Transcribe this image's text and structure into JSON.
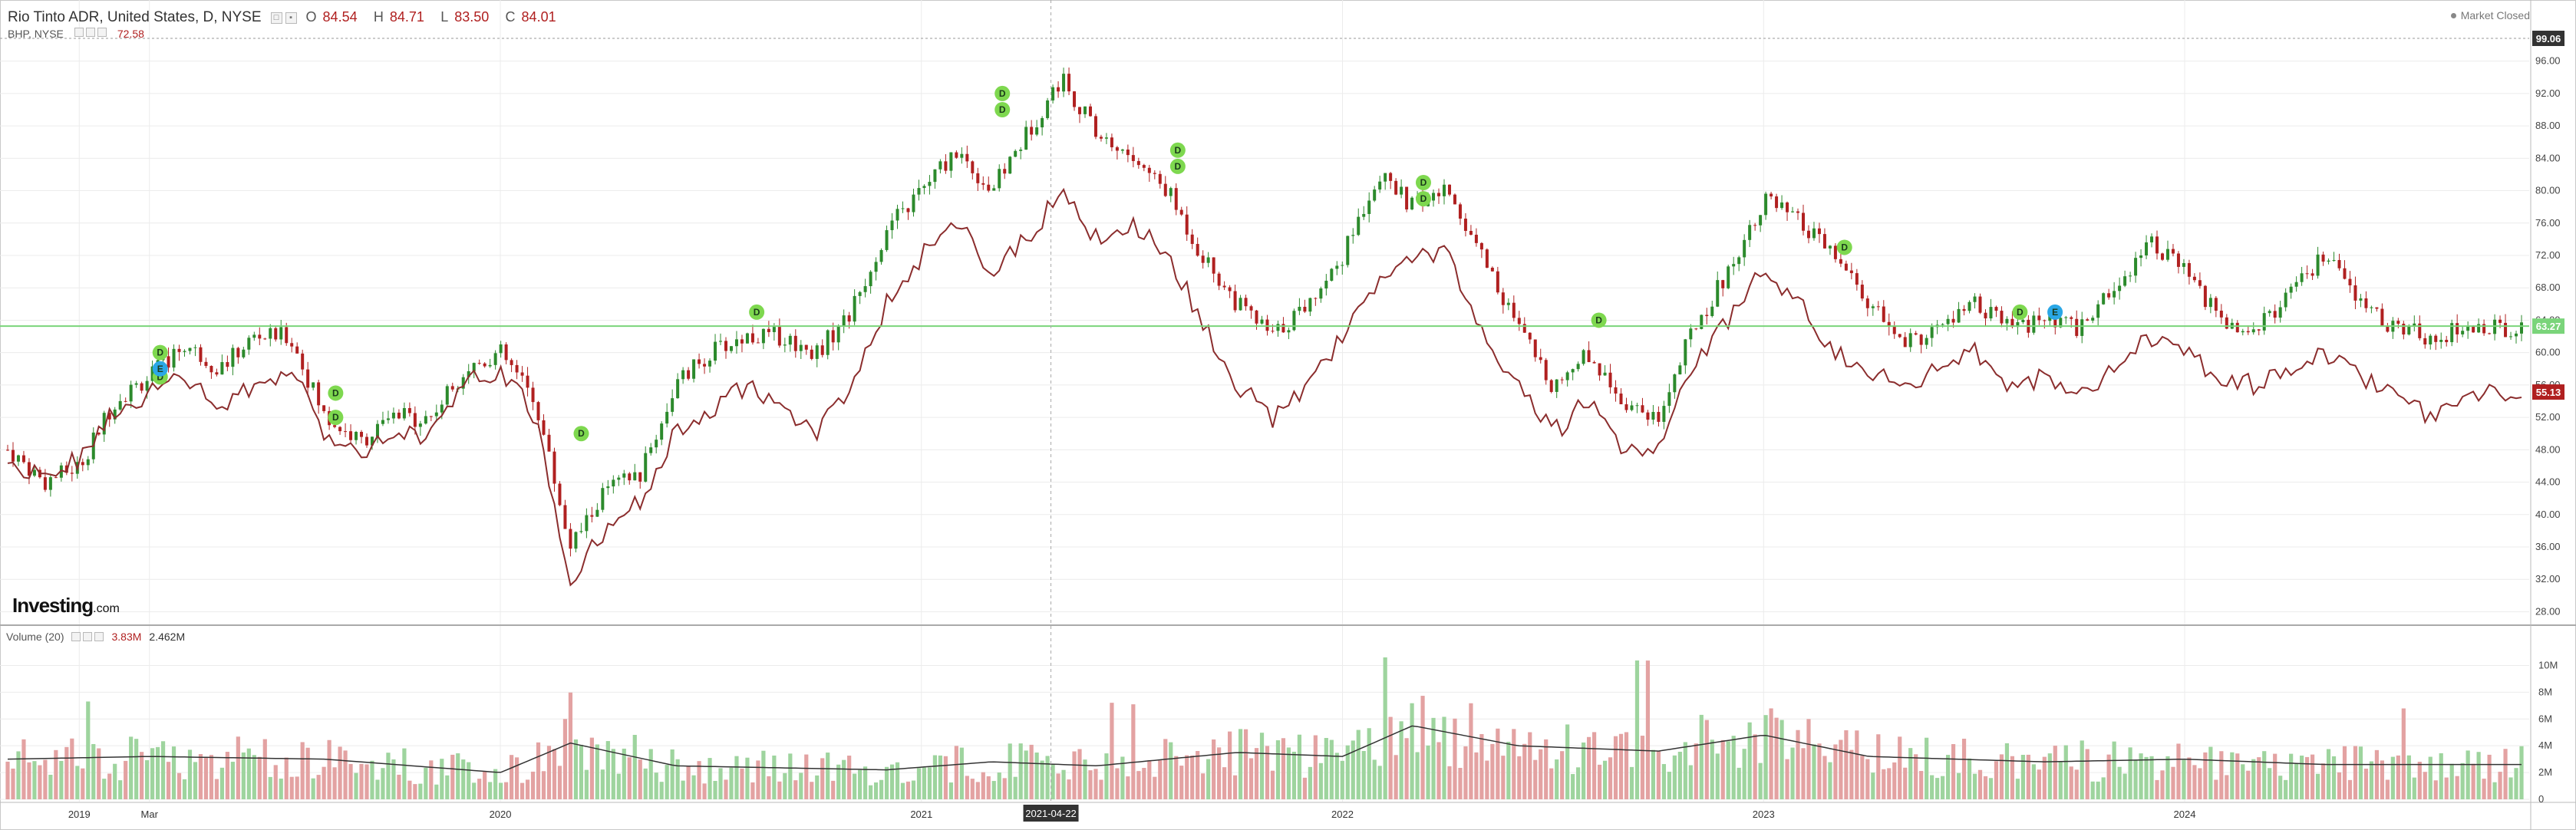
{
  "header": {
    "title": "Rio Tinto ADR, United States, D, NYSE",
    "open_label": "O",
    "open": "84.54",
    "high_label": "H",
    "high": "84.71",
    "low_label": "L",
    "low": "83.50",
    "close_label": "C",
    "close": "84.01",
    "market_status": "Market Closed"
  },
  "compare": {
    "symbol": "BHP, NYSE",
    "value": "72.58"
  },
  "watermark": {
    "brand": "Investing",
    "suffix": ".com"
  },
  "volume_legend": {
    "label": "Volume (20)",
    "value": "3.83M",
    "ma_value": "2.462M"
  },
  "markers": {
    "dividend_label": "D",
    "earnings_label": "E"
  },
  "colors": {
    "up": "#2c8a2c",
    "down": "#b02020",
    "compare_line": "#8b2d2d",
    "hline": "#7ad47a",
    "vol_up": "#9ed49e",
    "vol_down": "#e3a2a2",
    "dividend_marker": "#7ed84f",
    "earnings_marker": "#2aa7e6"
  },
  "chart_data": [
    {
      "type": "candlestick",
      "name": "Rio Tinto ADR",
      "y_axis_ticks": [
        "96.00",
        "92.00",
        "88.00",
        "84.00",
        "80.00",
        "76.00",
        "72.00",
        "68.00",
        "64.00",
        "60.00",
        "56.00",
        "52.00",
        "48.00",
        "44.00",
        "40.00",
        "36.00",
        "32.00",
        "28.00"
      ],
      "ylim": [
        27,
        99
      ],
      "x_axis_labels": [
        "2019",
        "Mar",
        "2020",
        "2021",
        "2021-04-22",
        "2022",
        "2023",
        "2024"
      ],
      "crosshair_date": "2021-04-22",
      "last_price_label": "99.06",
      "horizontal_line_label": "63.27",
      "horizontal_line_value": 63.27,
      "compare_last_label": "55.13",
      "price_path": [
        {
          "x": "2018-11",
          "y": 48
        },
        {
          "x": "2018-12",
          "y": 44
        },
        {
          "x": "2019-01",
          "y": 46
        },
        {
          "x": "2019-02",
          "y": 54
        },
        {
          "x": "2019-03",
          "y": 57
        },
        {
          "x": "2019-04",
          "y": 61
        },
        {
          "x": "2019-05",
          "y": 58
        },
        {
          "x": "2019-06",
          "y": 62
        },
        {
          "x": "2019-07",
          "y": 62
        },
        {
          "x": "2019-08",
          "y": 52
        },
        {
          "x": "2019-09",
          "y": 49
        },
        {
          "x": "2019-10",
          "y": 52
        },
        {
          "x": "2019-11",
          "y": 52
        },
        {
          "x": "2019-12",
          "y": 58
        },
        {
          "x": "2020-01",
          "y": 60
        },
        {
          "x": "2020-02",
          "y": 54
        },
        {
          "x": "2020-03",
          "y": 36
        },
        {
          "x": "2020-04",
          "y": 43
        },
        {
          "x": "2020-05",
          "y": 45
        },
        {
          "x": "2020-06",
          "y": 56
        },
        {
          "x": "2020-07",
          "y": 60
        },
        {
          "x": "2020-08",
          "y": 62
        },
        {
          "x": "2020-09",
          "y": 62
        },
        {
          "x": "2020-10",
          "y": 60
        },
        {
          "x": "2020-11",
          "y": 65
        },
        {
          "x": "2020-12",
          "y": 75
        },
        {
          "x": "2021-01",
          "y": 80
        },
        {
          "x": "2021-02",
          "y": 85
        },
        {
          "x": "2021-03",
          "y": 80
        },
        {
          "x": "2021-04",
          "y": 87
        },
        {
          "x": "2021-05",
          "y": 94
        },
        {
          "x": "2021-06",
          "y": 87
        },
        {
          "x": "2021-07",
          "y": 84
        },
        {
          "x": "2021-08",
          "y": 80
        },
        {
          "x": "2021-09",
          "y": 72
        },
        {
          "x": "2021-10",
          "y": 66
        },
        {
          "x": "2021-11",
          "y": 62
        },
        {
          "x": "2021-12",
          "y": 66
        },
        {
          "x": "2022-01",
          "y": 72
        },
        {
          "x": "2022-02",
          "y": 82
        },
        {
          "x": "2022-03",
          "y": 78
        },
        {
          "x": "2022-04",
          "y": 80
        },
        {
          "x": "2022-05",
          "y": 72
        },
        {
          "x": "2022-06",
          "y": 63
        },
        {
          "x": "2022-07",
          "y": 56
        },
        {
          "x": "2022-08",
          "y": 60
        },
        {
          "x": "2022-09",
          "y": 54
        },
        {
          "x": "2022-10",
          "y": 52
        },
        {
          "x": "2022-11",
          "y": 63
        },
        {
          "x": "2022-12",
          "y": 70
        },
        {
          "x": "2023-01",
          "y": 79
        },
        {
          "x": "2023-02",
          "y": 76
        },
        {
          "x": "2023-03",
          "y": 72
        },
        {
          "x": "2023-04",
          "y": 66
        },
        {
          "x": "2023-05",
          "y": 61
        },
        {
          "x": "2023-06",
          "y": 63
        },
        {
          "x": "2023-07",
          "y": 66
        },
        {
          "x": "2023-08",
          "y": 63
        },
        {
          "x": "2023-09",
          "y": 64
        },
        {
          "x": "2023-10",
          "y": 63
        },
        {
          "x": "2023-11",
          "y": 68
        },
        {
          "x": "2023-12",
          "y": 74
        },
        {
          "x": "2024-01",
          "y": 70
        },
        {
          "x": "2024-02",
          "y": 64
        },
        {
          "x": "2024-03",
          "y": 63
        },
        {
          "x": "2024-04",
          "y": 67
        },
        {
          "x": "2024-05",
          "y": 72
        },
        {
          "x": "2024-06",
          "y": 66
        },
        {
          "x": "2024-07",
          "y": 63
        },
        {
          "x": "2024-08",
          "y": 62
        },
        {
          "x": "2024-09",
          "y": 63
        }
      ],
      "compare_path": [
        {
          "x": "2018-11",
          "y": 47
        },
        {
          "x": "2018-12",
          "y": 44
        },
        {
          "x": "2019-01",
          "y": 47
        },
        {
          "x": "2019-02",
          "y": 53
        },
        {
          "x": "2019-03",
          "y": 55
        },
        {
          "x": "2019-04",
          "y": 57
        },
        {
          "x": "2019-05",
          "y": 53
        },
        {
          "x": "2019-06",
          "y": 56
        },
        {
          "x": "2019-07",
          "y": 58
        },
        {
          "x": "2019-08",
          "y": 50
        },
        {
          "x": "2019-09",
          "y": 48
        },
        {
          "x": "2019-10",
          "y": 50
        },
        {
          "x": "2019-11",
          "y": 50
        },
        {
          "x": "2019-12",
          "y": 56
        },
        {
          "x": "2020-01",
          "y": 58
        },
        {
          "x": "2020-02",
          "y": 52
        },
        {
          "x": "2020-03",
          "y": 32
        },
        {
          "x": "2020-04",
          "y": 38
        },
        {
          "x": "2020-05",
          "y": 42
        },
        {
          "x": "2020-06",
          "y": 50
        },
        {
          "x": "2020-07",
          "y": 53
        },
        {
          "x": "2020-08",
          "y": 56
        },
        {
          "x": "2020-09",
          "y": 53
        },
        {
          "x": "2020-10",
          "y": 50
        },
        {
          "x": "2020-11",
          "y": 56
        },
        {
          "x": "2020-12",
          "y": 66
        },
        {
          "x": "2021-01",
          "y": 72
        },
        {
          "x": "2021-02",
          "y": 76
        },
        {
          "x": "2021-03",
          "y": 70
        },
        {
          "x": "2021-04",
          "y": 74
        },
        {
          "x": "2021-05",
          "y": 80
        },
        {
          "x": "2021-06",
          "y": 74
        },
        {
          "x": "2021-07",
          "y": 76
        },
        {
          "x": "2021-08",
          "y": 72
        },
        {
          "x": "2021-09",
          "y": 64
        },
        {
          "x": "2021-10",
          "y": 56
        },
        {
          "x": "2021-11",
          "y": 52
        },
        {
          "x": "2021-12",
          "y": 56
        },
        {
          "x": "2022-01",
          "y": 62
        },
        {
          "x": "2022-02",
          "y": 68
        },
        {
          "x": "2022-03",
          "y": 72
        },
        {
          "x": "2022-04",
          "y": 72
        },
        {
          "x": "2022-05",
          "y": 62
        },
        {
          "x": "2022-06",
          "y": 56
        },
        {
          "x": "2022-07",
          "y": 50
        },
        {
          "x": "2022-08",
          "y": 54
        },
        {
          "x": "2022-09",
          "y": 48
        },
        {
          "x": "2022-10",
          "y": 48
        },
        {
          "x": "2022-11",
          "y": 58
        },
        {
          "x": "2022-12",
          "y": 64
        },
        {
          "x": "2023-01",
          "y": 70
        },
        {
          "x": "2023-02",
          "y": 66
        },
        {
          "x": "2023-03",
          "y": 60
        },
        {
          "x": "2023-04",
          "y": 58
        },
        {
          "x": "2023-05",
          "y": 55
        },
        {
          "x": "2023-06",
          "y": 58
        },
        {
          "x": "2023-07",
          "y": 60
        },
        {
          "x": "2023-08",
          "y": 56
        },
        {
          "x": "2023-09",
          "y": 57
        },
        {
          "x": "2023-10",
          "y": 55
        },
        {
          "x": "2023-11",
          "y": 58
        },
        {
          "x": "2023-12",
          "y": 62
        },
        {
          "x": "2024-01",
          "y": 60
        },
        {
          "x": "2024-02",
          "y": 57
        },
        {
          "x": "2024-03",
          "y": 56
        },
        {
          "x": "2024-04",
          "y": 58
        },
        {
          "x": "2024-05",
          "y": 60
        },
        {
          "x": "2024-06",
          "y": 57
        },
        {
          "x": "2024-07",
          "y": 55
        },
        {
          "x": "2024-08",
          "y": 52
        },
        {
          "x": "2024-09",
          "y": 55
        }
      ],
      "dividend_markers": [
        {
          "x": "2019-03",
          "y": 60
        },
        {
          "x": "2019-03",
          "y": 57
        },
        {
          "x": "2019-08",
          "y": 55
        },
        {
          "x": "2019-08",
          "y": 52
        },
        {
          "x": "2020-03",
          "y": 50
        },
        {
          "x": "2020-08",
          "y": 65
        },
        {
          "x": "2021-03",
          "y": 92
        },
        {
          "x": "2021-03",
          "y": 90
        },
        {
          "x": "2021-08",
          "y": 85
        },
        {
          "x": "2021-08",
          "y": 83
        },
        {
          "x": "2022-03",
          "y": 81
        },
        {
          "x": "2022-03",
          "y": 79
        },
        {
          "x": "2022-08",
          "y": 64
        },
        {
          "x": "2023-03",
          "y": 73
        },
        {
          "x": "2023-08",
          "y": 65
        }
      ],
      "earnings_markers": [
        {
          "x": "2019-03",
          "y": 58
        },
        {
          "x": "2023-09",
          "y": 65
        }
      ]
    },
    {
      "type": "bar",
      "name": "Volume (20)",
      "y_axis_ticks": [
        "10M",
        "8M",
        "6M",
        "4M",
        "2M",
        "0"
      ],
      "ylim": [
        0,
        11
      ],
      "unit": "M",
      "volume_path": [
        {
          "x": "2018-11",
          "y": 3.0
        },
        {
          "x": "2019-03",
          "y": 3.2
        },
        {
          "x": "2019-08",
          "y": 3.0
        },
        {
          "x": "2020-01",
          "y": 2.0
        },
        {
          "x": "2020-03",
          "y": 4.2
        },
        {
          "x": "2020-06",
          "y": 2.5
        },
        {
          "x": "2020-12",
          "y": 2.2
        },
        {
          "x": "2021-03",
          "y": 2.8
        },
        {
          "x": "2021-06",
          "y": 2.5
        },
        {
          "x": "2021-10",
          "y": 3.5
        },
        {
          "x": "2022-01",
          "y": 3.2
        },
        {
          "x": "2022-03",
          "y": 5.5
        },
        {
          "x": "2022-06",
          "y": 4.0
        },
        {
          "x": "2022-10",
          "y": 3.6
        },
        {
          "x": "2023-01",
          "y": 4.8
        },
        {
          "x": "2023-04",
          "y": 3.2
        },
        {
          "x": "2023-09",
          "y": 2.8
        },
        {
          "x": "2024-01",
          "y": 3.0
        },
        {
          "x": "2024-05",
          "y": 2.6
        },
        {
          "x": "2024-09",
          "y": 2.6
        }
      ]
    }
  ]
}
